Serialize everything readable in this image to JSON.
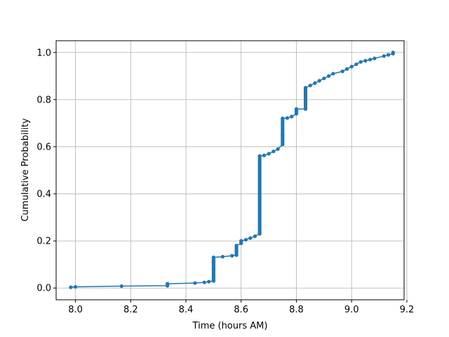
{
  "chart_data": {
    "type": "line",
    "title": "",
    "xlabel": "Time (hours AM)",
    "ylabel": "Cumulative Probability",
    "xlim": [
      7.93,
      9.19
    ],
    "ylim": [
      -0.05,
      1.05
    ],
    "xticks": [
      8.0,
      8.2,
      8.4,
      8.6,
      8.8,
      9.0,
      9.2
    ],
    "yticks": [
      0.0,
      0.2,
      0.4,
      0.6,
      0.8,
      1.0
    ],
    "xtick_labels": [
      "8.0",
      "8.2",
      "8.4",
      "8.6",
      "8.8",
      "9.0",
      "9.2"
    ],
    "ytick_labels": [
      "0.0",
      "0.2",
      "0.4",
      "0.6",
      "0.8",
      "1.0"
    ],
    "grid": true,
    "series_color": "#1f77b4",
    "series": [
      {
        "x": [
          7.983,
          8.0,
          8.167,
          8.333,
          8.333,
          8.433,
          8.467,
          8.483,
          8.5,
          8.5,
          8.5,
          8.5,
          8.533,
          8.567,
          8.583,
          8.583,
          8.583,
          8.6,
          8.6,
          8.617,
          8.633,
          8.65,
          8.667,
          8.667,
          8.667,
          8.683,
          8.7,
          8.717,
          8.733,
          8.75,
          8.75,
          8.75,
          8.767,
          8.783,
          8.8,
          8.8,
          8.833,
          8.833,
          8.833,
          8.85,
          8.867,
          8.883,
          8.9,
          8.917,
          8.933,
          8.967,
          8.983,
          9.0,
          9.017,
          9.033,
          9.05,
          9.067,
          9.083,
          9.117,
          9.133,
          9.15,
          9.15
        ],
        "y": [
          0.003,
          0.005,
          0.008,
          0.01,
          0.018,
          0.021,
          0.024,
          0.027,
          0.03,
          0.08,
          0.11,
          0.13,
          0.133,
          0.137,
          0.14,
          0.16,
          0.18,
          0.19,
          0.2,
          0.205,
          0.212,
          0.22,
          0.23,
          0.4,
          0.56,
          0.563,
          0.57,
          0.58,
          0.59,
          0.61,
          0.65,
          0.72,
          0.722,
          0.728,
          0.74,
          0.76,
          0.76,
          0.8,
          0.85,
          0.86,
          0.87,
          0.88,
          0.89,
          0.9,
          0.91,
          0.92,
          0.93,
          0.94,
          0.95,
          0.96,
          0.965,
          0.97,
          0.975,
          0.985,
          0.99,
          0.995,
          1.0
        ]
      }
    ]
  }
}
